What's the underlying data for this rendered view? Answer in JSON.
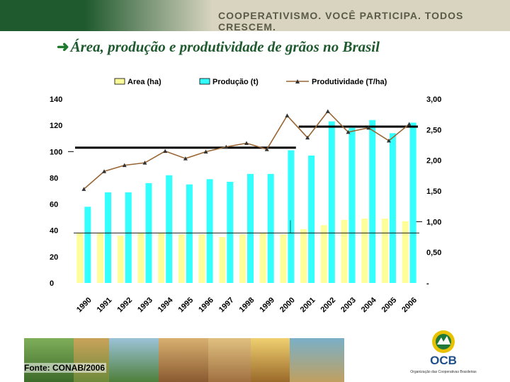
{
  "header": {
    "slogan": "COOPERATIVISMO. VOCÊ PARTICIPA. TODOS CRESCEM.",
    "title": "Área, produção e produtividade de grãos no Brasil",
    "bullet_icon": "arrow-right-icon"
  },
  "footer": {
    "source": "Fonte: CONAB/2006",
    "logo_text": "OCB",
    "logo_subtitle": "Organização das Cooperativas Brasileiras"
  },
  "colors": {
    "green": "#1f5a2e",
    "area": "#ffff99",
    "producao": "#33ffff",
    "produtividade": "#996633"
  },
  "chart_data": {
    "type": "bar",
    "categories": [
      "1990",
      "1991",
      "1992",
      "1993",
      "1994",
      "1995",
      "1996",
      "1997",
      "1998",
      "1999",
      "2000",
      "2001",
      "2002",
      "2003",
      "2004",
      "2005",
      "2006"
    ],
    "series": [
      {
        "name": "Area (ha)",
        "type": "bar",
        "axis": "left",
        "color": "#ffff99",
        "values": [
          38,
          38,
          36,
          38,
          38,
          37,
          37,
          35,
          37,
          38,
          37,
          41,
          44,
          48,
          49,
          49,
          47
        ]
      },
      {
        "name": "Produção (t)",
        "type": "bar",
        "axis": "left",
        "color": "#33ffff",
        "values": [
          58,
          69,
          69,
          76,
          82,
          75,
          79,
          77,
          83,
          83,
          101,
          97,
          123,
          118,
          124,
          114,
          122
        ]
      },
      {
        "name": "Produtividade (T/ha)",
        "type": "line",
        "axis": "right",
        "color": "#996633",
        "values": [
          1.53,
          1.82,
          1.92,
          1.96,
          2.15,
          2.03,
          2.14,
          2.22,
          2.28,
          2.18,
          2.73,
          2.37,
          2.8,
          2.46,
          2.53,
          2.32,
          2.59
        ]
      }
    ],
    "left_axis": {
      "ticks": [
        "0",
        "20",
        "40",
        "60",
        "80",
        "100",
        "120",
        "140"
      ],
      "ylim": [
        0,
        140
      ]
    },
    "right_axis": {
      "ticks": [
        "-",
        "0,50",
        "1,00",
        "1,50",
        "2,00",
        "2,50",
        "3,00"
      ],
      "ylim": [
        0,
        3
      ]
    },
    "reference_lines": [
      {
        "axis": "left",
        "value": 103,
        "from": "1990",
        "to": "2000"
      },
      {
        "axis": "left",
        "value": 119,
        "from": "2001",
        "to": "2006"
      }
    ],
    "legend_position": "top",
    "grid": false
  }
}
